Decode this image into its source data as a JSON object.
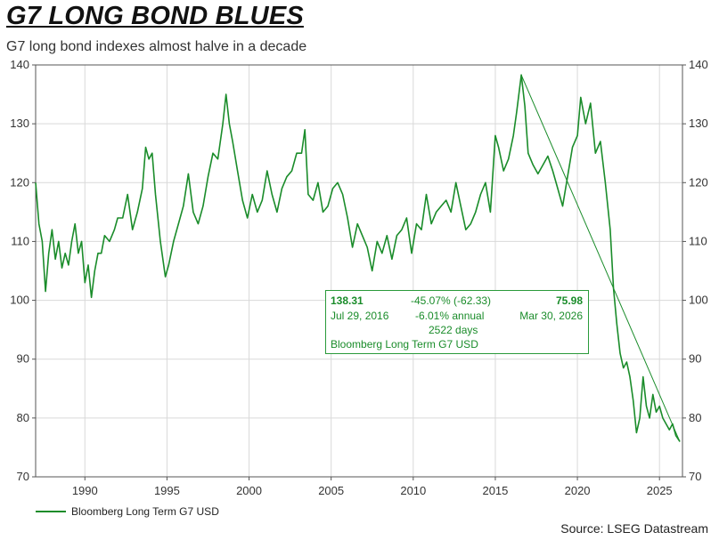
{
  "title": "G7 LONG BOND BLUES",
  "subtitle": "G7 long bond indexes almost halve in a decade",
  "source": "Source: LSEG Datastream",
  "colors": {
    "series": "#1a8c2a",
    "grid": "#d9d9d9",
    "axis": "#555555"
  },
  "annotation": {
    "start_value": "138.31",
    "start_date": "Jul 29, 2016",
    "change": "-45.07% (-62.33)",
    "annual": "-6.01% annual",
    "days": "2522 days",
    "end_value": "75.98",
    "end_date": "Mar 30, 2026",
    "series_name": "Bloomberg Long Term G7 USD"
  },
  "chart_data": {
    "type": "line",
    "title": "G7 LONG BOND BLUES",
    "subtitle": "G7 long bond indexes almost halve in a decade",
    "xlabel": "",
    "ylabel": "",
    "xlim": [
      1987.0,
      2026.4
    ],
    "ylim": [
      70,
      140
    ],
    "x_ticks": [
      1990,
      1995,
      2000,
      2005,
      2010,
      2015,
      2020,
      2025
    ],
    "y_ticks": [
      70,
      80,
      90,
      100,
      110,
      120,
      130,
      140
    ],
    "grid": true,
    "legend_position": "bottom-left",
    "series": [
      {
        "name": "Bloomberg Long Term G7 USD",
        "x": [
          1987.0,
          1987.2,
          1987.4,
          1987.6,
          1987.8,
          1988.0,
          1988.2,
          1988.4,
          1988.6,
          1988.8,
          1989.0,
          1989.2,
          1989.4,
          1989.6,
          1989.8,
          1990.0,
          1990.2,
          1990.4,
          1990.6,
          1990.8,
          1991.0,
          1991.2,
          1991.5,
          1991.8,
          1992.0,
          1992.3,
          1992.6,
          1992.9,
          1993.2,
          1993.5,
          1993.7,
          1993.9,
          1994.1,
          1994.3,
          1994.6,
          1994.9,
          1995.1,
          1995.4,
          1995.7,
          1996.0,
          1996.3,
          1996.6,
          1996.9,
          1997.2,
          1997.5,
          1997.8,
          1998.1,
          1998.4,
          1998.6,
          1998.8,
          1999.0,
          1999.3,
          1999.6,
          1999.9,
          2000.2,
          2000.5,
          2000.8,
          2001.1,
          2001.4,
          2001.7,
          2002.0,
          2002.3,
          2002.6,
          2002.9,
          2003.2,
          2003.4,
          2003.6,
          2003.9,
          2004.2,
          2004.5,
          2004.8,
          2005.1,
          2005.4,
          2005.7,
          2006.0,
          2006.3,
          2006.6,
          2006.9,
          2007.2,
          2007.5,
          2007.8,
          2008.1,
          2008.4,
          2008.7,
          2009.0,
          2009.3,
          2009.6,
          2009.9,
          2010.2,
          2010.5,
          2010.8,
          2011.1,
          2011.4,
          2011.7,
          2012.0,
          2012.3,
          2012.6,
          2012.9,
          2013.2,
          2013.5,
          2013.8,
          2014.1,
          2014.4,
          2014.7,
          2015.0,
          2015.2,
          2015.5,
          2015.8,
          2016.1,
          2016.3,
          2016.58,
          2016.8,
          2017.0,
          2017.3,
          2017.6,
          2017.9,
          2018.2,
          2018.5,
          2018.8,
          2019.1,
          2019.4,
          2019.7,
          2020.0,
          2020.2,
          2020.5,
          2020.8,
          2021.1,
          2021.4,
          2021.7,
          2022.0,
          2022.2,
          2022.4,
          2022.6,
          2022.8,
          2023.0,
          2023.2,
          2023.4,
          2023.6,
          2023.8,
          2024.0,
          2024.2,
          2024.4,
          2024.6,
          2024.8,
          2025.0,
          2025.2,
          2025.4,
          2025.6,
          2025.8,
          2026.0,
          2026.24
        ],
        "values": [
          120,
          113,
          110,
          101.5,
          108,
          112,
          107,
          110,
          105.5,
          108,
          106,
          110,
          113,
          108,
          110,
          103,
          106,
          100.5,
          105,
          108,
          108,
          111,
          110,
          112,
          114,
          114,
          118,
          112,
          115,
          119,
          126,
          124,
          125,
          118,
          110,
          104,
          106,
          110,
          113,
          116,
          121.5,
          115,
          113,
          116,
          121,
          125,
          124,
          130,
          135,
          130,
          127,
          122,
          117,
          114,
          118,
          115,
          117,
          122,
          118,
          115,
          119,
          121,
          122,
          125,
          125,
          129,
          118,
          117,
          120,
          115,
          116,
          119,
          120,
          118,
          114,
          109,
          113,
          111,
          109,
          105,
          110,
          108,
          111,
          107,
          111,
          112,
          114,
          108,
          113,
          112,
          118,
          113,
          115,
          116,
          117,
          115,
          120,
          116,
          112,
          113,
          115,
          118,
          120,
          115,
          128,
          126,
          122,
          124,
          128,
          132,
          138.31,
          133,
          125,
          123,
          121.5,
          123,
          124.5,
          122,
          119,
          116,
          121,
          126,
          128,
          134.5,
          130,
          133.5,
          125,
          127,
          120,
          112,
          102,
          96,
          91,
          88.5,
          89.5,
          87,
          83,
          77.5,
          80,
          87,
          82,
          80,
          84,
          81,
          82,
          80,
          79,
          78,
          79,
          77,
          75.98
        ]
      }
    ]
  }
}
